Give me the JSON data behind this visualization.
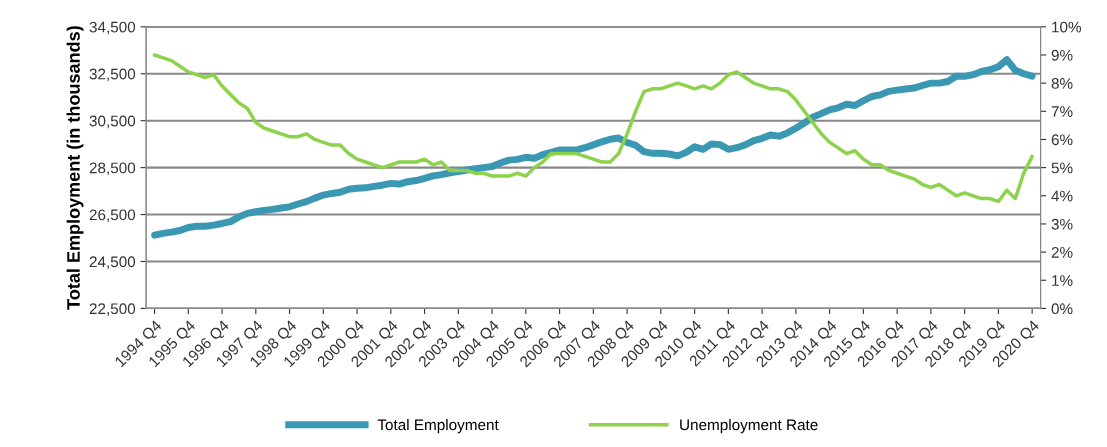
{
  "chart_data": {
    "type": "line",
    "ylabel": "Total Employment (in thousands)",
    "categories": [
      "1994 Q4",
      null,
      null,
      null,
      "1995 Q4",
      null,
      null,
      null,
      "1996 Q4",
      null,
      null,
      null,
      "1997 Q4",
      null,
      null,
      null,
      "1998 Q4",
      null,
      null,
      null,
      "1999 Q4",
      null,
      null,
      null,
      "2000 Q4",
      null,
      null,
      null,
      "2001 Q4",
      null,
      null,
      null,
      "2002 Q4",
      null,
      null,
      null,
      "2003 Q4",
      null,
      null,
      null,
      "2004 Q4",
      null,
      null,
      null,
      "2005 Q4",
      null,
      null,
      null,
      "2006 Q4",
      null,
      null,
      null,
      "2007 Q4",
      null,
      null,
      null,
      "2008 Q4",
      null,
      null,
      null,
      "2009 Q4",
      null,
      null,
      null,
      "2010 Q4",
      null,
      null,
      null,
      "2011 Q4",
      null,
      null,
      null,
      "2012 Q4",
      null,
      null,
      null,
      "2013 Q4",
      null,
      null,
      null,
      "2014 Q4",
      null,
      null,
      null,
      "2015 Q4",
      null,
      null,
      null,
      "2016 Q4",
      null,
      null,
      null,
      "2017 Q4",
      null,
      null,
      null,
      "2018 Q4",
      null,
      null,
      null,
      "2019 Q4",
      null,
      null,
      null,
      "2020 Q4"
    ],
    "series": [
      {
        "name": "Total Employment",
        "color": "#3b98b3",
        "values": [
          25620,
          25700,
          25750,
          25820,
          25950,
          26000,
          26000,
          26050,
          26120,
          26200,
          26400,
          26550,
          26620,
          26680,
          26720,
          26780,
          26830,
          26950,
          27050,
          27200,
          27330,
          27400,
          27450,
          27580,
          27620,
          27640,
          27700,
          27750,
          27830,
          27800,
          27900,
          27950,
          28040,
          28150,
          28200,
          28280,
          28330,
          28400,
          28450,
          28500,
          28550,
          28700,
          28820,
          28850,
          28940,
          28900,
          29050,
          29150,
          29250,
          29250,
          29250,
          29350,
          29470,
          29600,
          29710,
          29760,
          29570,
          29450,
          29180,
          29110,
          29110,
          29080,
          29000,
          29150,
          29390,
          29280,
          29510,
          29480,
          29280,
          29350,
          29470,
          29650,
          29750,
          29890,
          29840,
          29980,
          30180,
          30400,
          30650,
          30800,
          30960,
          31050,
          31200,
          31150,
          31350,
          31530,
          31600,
          31750,
          31800,
          31850,
          31890,
          32000,
          32100,
          32100,
          32170,
          32390,
          32390,
          32460,
          32600,
          32670,
          32800,
          33100,
          32650,
          32500,
          32400
        ]
      },
      {
        "name": "Unemployment Rate",
        "color": "#8cd24a",
        "axis": "y2",
        "values": [
          9.0,
          8.9,
          8.8,
          8.6,
          8.4,
          8.3,
          8.2,
          8.3,
          7.9,
          7.6,
          7.3,
          7.1,
          6.6,
          6.4,
          6.3,
          6.2,
          6.1,
          6.1,
          6.2,
          6.0,
          5.9,
          5.8,
          5.8,
          5.5,
          5.3,
          5.2,
          5.1,
          5.0,
          5.1,
          5.2,
          5.2,
          5.2,
          5.3,
          5.1,
          5.2,
          4.9,
          4.9,
          4.9,
          4.8,
          4.8,
          4.7,
          4.7,
          4.7,
          4.8,
          4.7,
          5.0,
          5.2,
          5.5,
          5.5,
          5.5,
          5.5,
          5.4,
          5.3,
          5.2,
          5.2,
          5.5,
          6.2,
          7.0,
          7.7,
          7.8,
          7.8,
          7.9,
          8.0,
          7.9,
          7.8,
          7.9,
          7.8,
          8.0,
          8.3,
          8.4,
          8.2,
          8.0,
          7.9,
          7.8,
          7.8,
          7.7,
          7.4,
          7.0,
          6.6,
          6.2,
          5.9,
          5.7,
          5.5,
          5.6,
          5.3,
          5.1,
          5.1,
          4.9,
          4.8,
          4.7,
          4.6,
          4.4,
          4.3,
          4.4,
          4.2,
          4.0,
          4.1,
          4.0,
          3.9,
          3.9,
          3.8,
          4.2,
          3.9,
          4.8,
          5.4
        ]
      }
    ],
    "ylim": [
      22500,
      34500
    ],
    "yticks": [
      {
        "value": 22500,
        "label": "22,500"
      },
      {
        "value": 24500,
        "label": "24,500"
      },
      {
        "value": 26500,
        "label": "26,500"
      },
      {
        "value": 28500,
        "label": "28,500"
      },
      {
        "value": 30500,
        "label": "30,500"
      },
      {
        "value": 32500,
        "label": "32,500"
      },
      {
        "value": 34500,
        "label": "34,500"
      }
    ],
    "y2lim": [
      0,
      10
    ],
    "y2ticks": [
      {
        "value": 0,
        "label": "0%"
      },
      {
        "value": 1,
        "label": "1%"
      },
      {
        "value": 2,
        "label": "2%"
      },
      {
        "value": 3,
        "label": "3%"
      },
      {
        "value": 4,
        "label": "4%"
      },
      {
        "value": 5,
        "label": "5%"
      },
      {
        "value": 6,
        "label": "6%"
      },
      {
        "value": 7,
        "label": "7%"
      },
      {
        "value": 8,
        "label": "8%"
      },
      {
        "value": 9,
        "label": "9%"
      },
      {
        "value": 10,
        "label": "10%"
      }
    ],
    "grid": "y",
    "legend": "bottom",
    "marker": "none",
    "line_style": "solid"
  }
}
